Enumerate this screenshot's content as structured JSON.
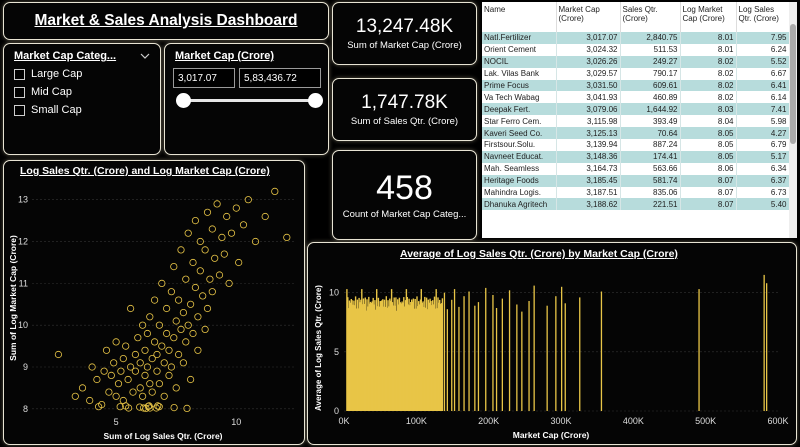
{
  "title": "Market & Sales Analysis Dashboard",
  "kpis": {
    "market_cap_value": "13,247.48K",
    "market_cap_label": "Sum of Market Cap (Crore)",
    "sales_value": "1,747.78K",
    "sales_label": "Sum of Sales Qtr. (Crore)",
    "count_value": "458",
    "count_label": "Count of Market Cap Categ..."
  },
  "slicer_category": {
    "title": "Market Cap Categ...",
    "options": [
      "Large Cap",
      "Mid Cap",
      "Small Cap"
    ]
  },
  "slicer_range": {
    "title": "Market Cap (Crore)",
    "min_value": "3,017.07",
    "max_value": "5,83,436.72",
    "low_fraction": 0,
    "high_fraction": 1
  },
  "table": {
    "headers": [
      "Name",
      "Market Cap (Crore)",
      "Sales Qtr. (Crore)",
      "Log Market Cap (Crore)",
      "Log Sales Qtr. (Crore)"
    ],
    "rows": [
      [
        "Natl.Fertilizer",
        "3,017.07",
        "2,840.75",
        "8.01",
        "7.95"
      ],
      [
        "Orient Cement",
        "3,024.32",
        "511.53",
        "8.01",
        "6.24"
      ],
      [
        "NOCIL",
        "3,026.26",
        "249.27",
        "8.02",
        "5.52"
      ],
      [
        "Lak. Vilas Bank",
        "3,029.57",
        "790.17",
        "8.02",
        "6.67"
      ],
      [
        "Prime Focus",
        "3,031.50",
        "609.61",
        "8.02",
        "6.41"
      ],
      [
        "Va Tech Wabag",
        "3,041.93",
        "460.89",
        "8.02",
        "6.14"
      ],
      [
        "Deepak Fert.",
        "3,079.06",
        "1,644.92",
        "8.03",
        "7.41"
      ],
      [
        "Star Ferro Cem.",
        "3,115.98",
        "393.49",
        "8.04",
        "5.98"
      ],
      [
        "Kaveri Seed Co.",
        "3,125.13",
        "70.64",
        "8.05",
        "4.27"
      ],
      [
        "Firstsour.Solu.",
        "3,139.94",
        "887.24",
        "8.05",
        "6.79"
      ],
      [
        "Navneet Educat.",
        "3,148.36",
        "174.41",
        "8.05",
        "5.17"
      ],
      [
        "Mah. Seamless",
        "3,164.73",
        "563.66",
        "8.06",
        "6.34"
      ],
      [
        "Heritage Foods",
        "3,185.45",
        "581.74",
        "8.07",
        "6.37"
      ],
      [
        "Mahindra Logis.",
        "3,187.51",
        "835.06",
        "8.07",
        "6.73"
      ],
      [
        "Dhanuka Agritech",
        "3,188.62",
        "221.51",
        "8.07",
        "5.40"
      ]
    ]
  },
  "colors": {
    "accent": "#e8c547",
    "card_border": "#e8e4d4"
  },
  "chart_data": [
    {
      "type": "scatter",
      "title": "Log Sales Qtr. (Crore) and Log Market Cap (Crore)",
      "xlabel": "Sum of Log Sales Qtr. (Crore)",
      "ylabel": "Sum of Log Market Cap (Crore)",
      "xlim": [
        1.5,
        12.4
      ],
      "ylim": [
        7.9,
        13.4
      ],
      "xticks": [
        5,
        10
      ],
      "yticks": [
        8,
        9,
        10,
        11,
        12,
        13
      ],
      "points": [
        [
          7.95,
          8.01
        ],
        [
          6.24,
          8.01
        ],
        [
          5.52,
          8.02
        ],
        [
          6.67,
          8.02
        ],
        [
          6.41,
          8.02
        ],
        [
          6.14,
          8.02
        ],
        [
          7.41,
          8.03
        ],
        [
          5.98,
          8.04
        ],
        [
          4.27,
          8.05
        ],
        [
          6.79,
          8.05
        ],
        [
          5.17,
          8.05
        ],
        [
          6.34,
          8.06
        ],
        [
          6.37,
          8.07
        ],
        [
          6.73,
          8.07
        ],
        [
          5.4,
          8.07
        ],
        [
          2.6,
          9.3
        ],
        [
          3.3,
          8.3
        ],
        [
          3.6,
          8.5
        ],
        [
          3.9,
          8.2
        ],
        [
          4.0,
          9.0
        ],
        [
          4.2,
          8.7
        ],
        [
          4.4,
          8.1
        ],
        [
          4.5,
          8.9
        ],
        [
          4.6,
          9.4
        ],
        [
          4.7,
          8.4
        ],
        [
          4.8,
          8.8
        ],
        [
          4.9,
          9.1
        ],
        [
          5.0,
          8.3
        ],
        [
          5.0,
          9.6
        ],
        [
          5.1,
          8.6
        ],
        [
          5.2,
          8.9
        ],
        [
          5.3,
          9.2
        ],
        [
          5.3,
          8.2
        ],
        [
          5.4,
          9.5
        ],
        [
          5.5,
          8.7
        ],
        [
          5.6,
          9.0
        ],
        [
          5.6,
          10.4
        ],
        [
          5.7,
          8.4
        ],
        [
          5.8,
          9.3
        ],
        [
          5.8,
          8.9
        ],
        [
          5.9,
          9.7
        ],
        [
          6.0,
          8.5
        ],
        [
          6.0,
          9.1
        ],
        [
          6.1,
          10.0
        ],
        [
          6.1,
          8.3
        ],
        [
          6.2,
          9.4
        ],
        [
          6.2,
          8.8
        ],
        [
          6.3,
          9.8
        ],
        [
          6.3,
          9.0
        ],
        [
          6.4,
          8.6
        ],
        [
          6.4,
          10.2
        ],
        [
          6.5,
          9.2
        ],
        [
          6.5,
          8.4
        ],
        [
          6.6,
          9.6
        ],
        [
          6.6,
          10.6
        ],
        [
          6.7,
          8.9
        ],
        [
          6.7,
          9.3
        ],
        [
          6.8,
          10.0
        ],
        [
          6.8,
          8.6
        ],
        [
          6.9,
          9.5
        ],
        [
          6.9,
          11.0
        ],
        [
          7.0,
          9.1
        ],
        [
          7.0,
          8.3
        ],
        [
          7.1,
          9.8
        ],
        [
          7.1,
          10.4
        ],
        [
          7.2,
          8.8
        ],
        [
          7.2,
          9.4
        ],
        [
          7.3,
          10.8
        ],
        [
          7.3,
          9.0
        ],
        [
          7.4,
          9.7
        ],
        [
          7.4,
          11.4
        ],
        [
          7.5,
          10.1
        ],
        [
          7.5,
          8.5
        ],
        [
          7.6,
          9.3
        ],
        [
          7.6,
          10.6
        ],
        [
          7.7,
          9.9
        ],
        [
          7.7,
          11.8
        ],
        [
          7.8,
          10.3
        ],
        [
          7.8,
          9.1
        ],
        [
          7.9,
          11.1
        ],
        [
          7.9,
          9.6
        ],
        [
          8.0,
          10.0
        ],
        [
          8.0,
          12.2
        ],
        [
          8.1,
          10.5
        ],
        [
          8.1,
          8.7
        ],
        [
          8.2,
          11.5
        ],
        [
          8.2,
          9.8
        ],
        [
          8.3,
          10.9
        ],
        [
          8.3,
          12.5
        ],
        [
          8.4,
          10.2
        ],
        [
          8.4,
          9.4
        ],
        [
          8.5,
          11.3
        ],
        [
          8.5,
          12.0
        ],
        [
          8.6,
          10.7
        ],
        [
          8.7,
          11.8
        ],
        [
          8.7,
          9.9
        ],
        [
          8.8,
          12.7
        ],
        [
          8.8,
          10.4
        ],
        [
          8.9,
          11.1
        ],
        [
          9.0,
          12.3
        ],
        [
          9.0,
          10.8
        ],
        [
          9.1,
          11.6
        ],
        [
          9.2,
          12.9
        ],
        [
          9.3,
          11.2
        ],
        [
          9.4,
          12.1
        ],
        [
          9.5,
          11.7
        ],
        [
          9.6,
          12.6
        ],
        [
          9.7,
          11.0
        ],
        [
          9.8,
          12.2
        ],
        [
          10.0,
          12.8
        ],
        [
          10.1,
          11.5
        ],
        [
          10.3,
          12.4
        ],
        [
          10.5,
          13.0
        ],
        [
          10.8,
          12.0
        ],
        [
          11.2,
          12.6
        ],
        [
          11.6,
          13.2
        ],
        [
          12.1,
          12.1
        ]
      ]
    },
    {
      "type": "bar",
      "title": "Average of Log Sales Qtr. (Crore) by Market Cap (Crore)",
      "xlabel": "Market Cap (Crore)",
      "ylabel": "Average of Log Sales Qtr. (Crore)",
      "xlim": [
        0,
        600000
      ],
      "ylim": [
        0,
        12
      ],
      "xticks": [
        [
          0,
          "0K"
        ],
        [
          100000,
          "100K"
        ],
        [
          200000,
          "200K"
        ],
        [
          300000,
          "300K"
        ],
        [
          400000,
          "400K"
        ],
        [
          500000,
          "500K"
        ],
        [
          600000,
          "600K"
        ]
      ],
      "yticks": [
        0,
        5,
        10
      ],
      "dense_range": [
        3017,
        135000
      ],
      "sparse_bars": [
        [
          138000,
          10.0
        ],
        [
          142000,
          8.6
        ],
        [
          148000,
          9.4
        ],
        [
          152000,
          10.3
        ],
        [
          158000,
          8.8
        ],
        [
          165000,
          9.7
        ],
        [
          172000,
          10.1
        ],
        [
          180000,
          8.9
        ],
        [
          185000,
          9.2
        ],
        [
          195000,
          10.4
        ],
        [
          205000,
          9.8
        ],
        [
          210000,
          8.7
        ],
        [
          218000,
          9.5
        ],
        [
          228000,
          10.2
        ],
        [
          238000,
          9.0
        ],
        [
          245000,
          8.4
        ],
        [
          255000,
          9.3
        ],
        [
          262000,
          10.6
        ],
        [
          280000,
          8.9
        ],
        [
          292000,
          9.7
        ],
        [
          300000,
          10.5
        ],
        [
          305000,
          9.1
        ],
        [
          325000,
          9.6
        ],
        [
          355000,
          10.1
        ],
        [
          490000,
          10.3
        ],
        [
          580000,
          11.5
        ],
        [
          583437,
          10.8
        ]
      ]
    }
  ]
}
